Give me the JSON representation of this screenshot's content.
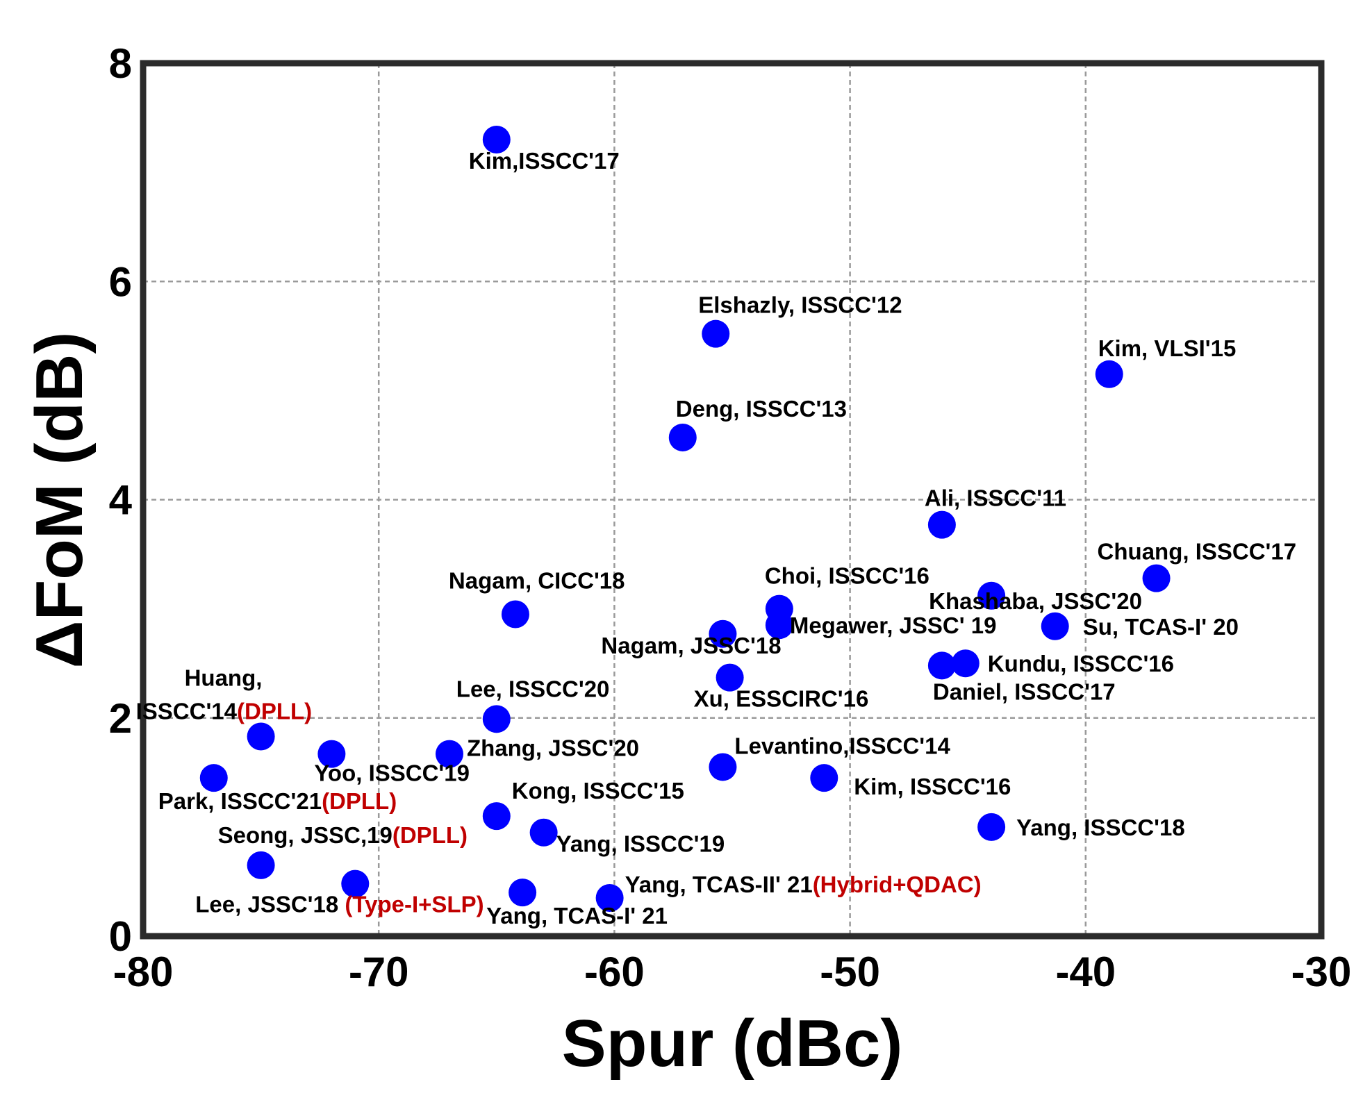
{
  "chart_data": {
    "type": "scatter",
    "title": "",
    "xlabel": "Spur (dBc)",
    "ylabel": "ΔFoM (dB)",
    "xlim": [
      -80,
      -30
    ],
    "ylim": [
      0,
      8
    ],
    "x_ticks": [
      "-80",
      "-70",
      "-60",
      "-50",
      "-40",
      "-30"
    ],
    "y_ticks": [
      "0",
      "2",
      "4",
      "6",
      "8"
    ],
    "grid": true,
    "marker_color": "#0000ff",
    "highlight_color": "#c00000",
    "points": [
      {
        "x": -65.0,
        "y": 7.3,
        "label": [
          "Kim,ISSCC'17"
        ]
      },
      {
        "x": -55.7,
        "y": 5.52,
        "label": [
          "Elshazly, ISSCC'12"
        ]
      },
      {
        "x": -39.0,
        "y": 5.15,
        "label": [
          "Kim, VLSI'15"
        ]
      },
      {
        "x": -57.1,
        "y": 4.57,
        "label": [
          "Deng, ISSCC'13"
        ]
      },
      {
        "x": -46.1,
        "y": 3.77,
        "label": [
          "Ali, ISSCC'11"
        ]
      },
      {
        "x": -37.0,
        "y": 3.28,
        "label": [
          "Chuang, ISSCC'17"
        ]
      },
      {
        "x": -64.2,
        "y": 2.95,
        "label": [
          "Nagam, CICC'18"
        ]
      },
      {
        "x": -53.0,
        "y": 3.0,
        "label": [
          "Choi, ISSCC'16"
        ]
      },
      {
        "x": -44.0,
        "y": 3.12,
        "label": [
          "Khashaba, JSSC'20"
        ]
      },
      {
        "x": -53.0,
        "y": 2.85,
        "label": [
          "Megawer, JSSC' 19"
        ]
      },
      {
        "x": -41.3,
        "y": 2.84,
        "label": [
          "Su, TCAS-I' 20"
        ]
      },
      {
        "x": -55.4,
        "y": 2.77,
        "label": [
          "Nagam, JSSC'18"
        ]
      },
      {
        "x": -46.1,
        "y": 2.48,
        "label": [
          "Daniel, ISSCC'17"
        ]
      },
      {
        "x": -45.1,
        "y": 2.5,
        "label": [
          "Kundu, ISSCC'16"
        ]
      },
      {
        "x": -55.1,
        "y": 2.37,
        "label": [
          "Xu, ESSCIRC'16"
        ]
      },
      {
        "x": -75.0,
        "y": 1.83,
        "label": [
          "Huang,",
          "ISSCC'14",
          "(DPLL)"
        ]
      },
      {
        "x": -65.0,
        "y": 1.99,
        "label": [
          "Lee, ISSCC'20"
        ]
      },
      {
        "x": -72.0,
        "y": 1.67,
        "label": [
          "Yoo, ISSCC'19"
        ]
      },
      {
        "x": -67.0,
        "y": 1.67,
        "label": [
          "Zhang, JSSC'20"
        ]
      },
      {
        "x": -55.4,
        "y": 1.55,
        "label": [
          "Levantino,ISSCC'14"
        ]
      },
      {
        "x": -51.1,
        "y": 1.45,
        "label": [
          "Kim, ISSCC'16"
        ]
      },
      {
        "x": -77.0,
        "y": 1.45,
        "label": [
          "Park, ISSCC'21",
          "(DPLL)"
        ]
      },
      {
        "x": -65.0,
        "y": 1.1,
        "label": [
          "Kong, ISSCC'15"
        ]
      },
      {
        "x": -63.0,
        "y": 0.95,
        "label": [
          "Yang, ISSCC'19"
        ]
      },
      {
        "x": -44.0,
        "y": 1.0,
        "label": [
          "Yang, ISSCC'18"
        ]
      },
      {
        "x": -75.0,
        "y": 0.65,
        "label": [
          "Seong, JSSC,19",
          "(DPLL)"
        ]
      },
      {
        "x": -71.0,
        "y": 0.48,
        "label": [
          "Lee, JSSC'18 ",
          "(Type-I+SLP)"
        ]
      },
      {
        "x": -63.9,
        "y": 0.4,
        "label": [
          "Yang, TCAS-I' 21"
        ]
      },
      {
        "x": -60.2,
        "y": 0.35,
        "label": [
          "Yang, TCAS-II' 21",
          "(Hybrid+QDAC)"
        ]
      }
    ]
  }
}
